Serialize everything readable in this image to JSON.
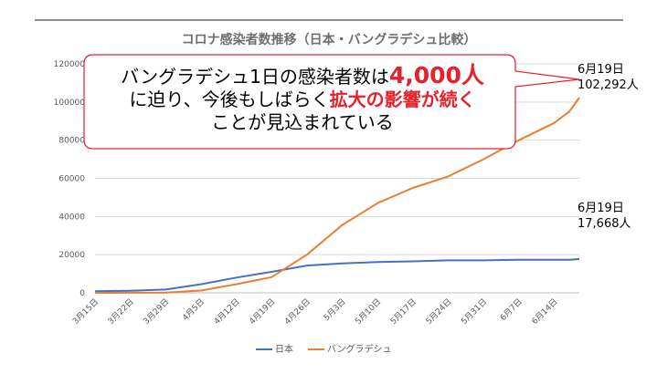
{
  "chart_data": {
    "type": "line",
    "title": "コロナ感染者数推移（日本・バングラデシュ比較）",
    "categories": [
      "3月15日",
      "3月22日",
      "3月29日",
      "4月5日",
      "4月12日",
      "4月19日",
      "4月26日",
      "5月3日",
      "5月10日",
      "5月17日",
      "5月24日",
      "5月31日",
      "6月7日",
      "6月14日"
    ],
    "x": [
      0,
      7,
      14,
      21,
      28,
      35,
      42,
      49,
      56,
      63,
      70,
      77,
      84,
      91,
      94,
      96
    ],
    "ylim": [
      0,
      120000
    ],
    "yticks": [
      "0",
      "20000",
      "40000",
      "60000",
      "80000",
      "100000",
      "120000"
    ],
    "grid": true,
    "legend_position": "bottom",
    "series": [
      {
        "name": "日本",
        "color": "#4472c4",
        "values": [
          800,
          1100,
          1700,
          4500,
          8000,
          11000,
          14300,
          15400,
          16100,
          16500,
          17000,
          17000,
          17300,
          17300,
          17300,
          17668
        ]
      },
      {
        "name": "バングラデシュ",
        "color": "#ed7d31",
        "values": [
          0,
          50,
          100,
          1200,
          4500,
          8200,
          20000,
          35500,
          47000,
          55000,
          61000,
          70000,
          80000,
          89000,
          95000,
          102292
        ]
      }
    ],
    "annotations": {
      "bangladesh_date": "6月19日",
      "bangladesh_value": "102,292人",
      "japan_date": "6月19日",
      "japan_value": "17,668人"
    }
  },
  "callout": {
    "line1_a": "バングラデシュ1日の感染者数は",
    "line1_b": "4,000人",
    "line2_a": "に迫り、今後もしばらく",
    "line2_b": "拡大の影響が続く",
    "line3": "ことが見込まれている",
    "border_color": "#e8202a"
  }
}
